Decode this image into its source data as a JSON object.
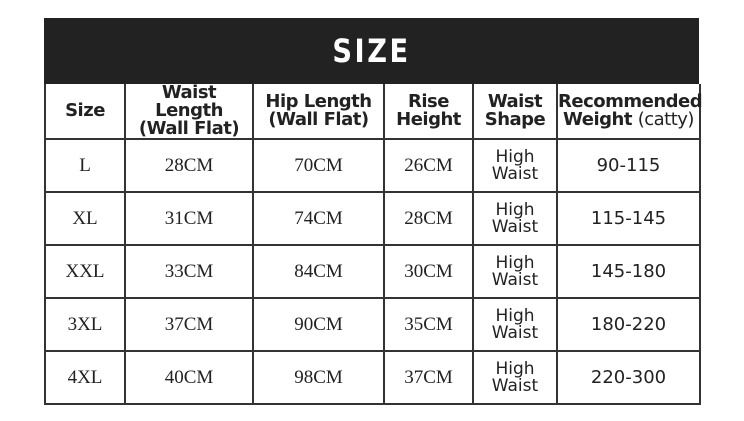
{
  "title": "SIZE",
  "headers": {
    "size": "Size",
    "waist_1": "Waist Length",
    "waist_2": "(Wall Flat)",
    "hip_1": "Hip Length",
    "hip_2": "(Wall Flat)",
    "rise_1": "Rise",
    "rise_2": "Height",
    "shape_1": "Waist",
    "shape_2": "Shape",
    "weight_1": "Recommended",
    "weight_2": "Weight",
    "weight_unit": "(catty)"
  },
  "rows": [
    {
      "size": "L",
      "waist": "28CM",
      "hip": "70CM",
      "rise": "26CM",
      "shape_1": "High",
      "shape_2": "Waist",
      "weight": "90-115"
    },
    {
      "size": "XL",
      "waist": "31CM",
      "hip": "74CM",
      "rise": "28CM",
      "shape_1": "High",
      "shape_2": "Waist",
      "weight": "115-145"
    },
    {
      "size": "XXL",
      "waist": "33CM",
      "hip": "84CM",
      "rise": "30CM",
      "shape_1": "High",
      "shape_2": "Waist",
      "weight": "145-180"
    },
    {
      "size": "3XL",
      "waist": "37CM",
      "hip": "90CM",
      "rise": "35CM",
      "shape_1": "High",
      "shape_2": "Waist",
      "weight": "180-220"
    },
    {
      "size": "4XL",
      "waist": "40CM",
      "hip": "98CM",
      "rise": "37CM",
      "shape_1": "High",
      "shape_2": "Waist",
      "weight": "220-300"
    }
  ]
}
